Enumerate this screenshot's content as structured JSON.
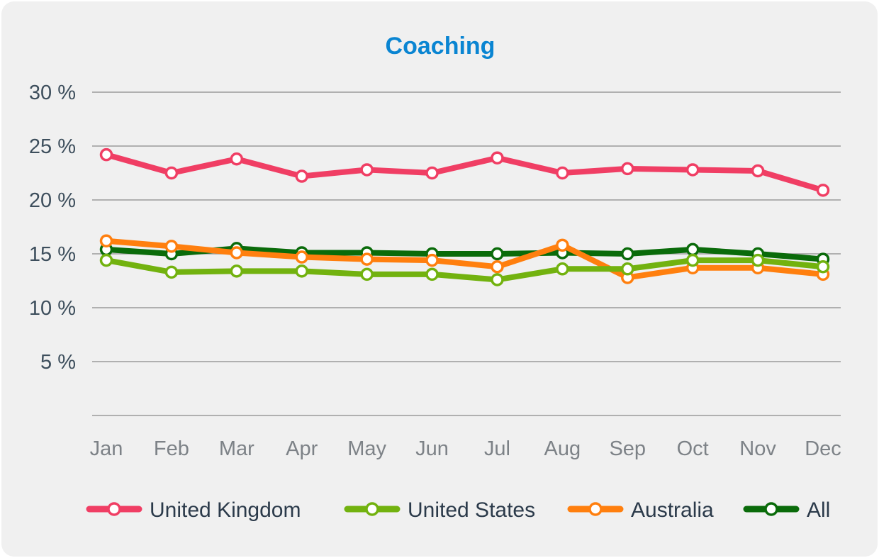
{
  "chart_data": {
    "type": "line",
    "title": "Coaching",
    "title_color": "#0a85d2",
    "xlabel": "",
    "ylabel": "",
    "ylim": [
      0,
      30
    ],
    "grid": true,
    "legend_position": "bottom",
    "x": [
      "Jan",
      "Feb",
      "Mar",
      "Apr",
      "May",
      "Jun",
      "Jul",
      "Aug",
      "Sep",
      "Oct",
      "Nov",
      "Dec"
    ],
    "y_ticks": [
      {
        "value": 5,
        "label": "5 %"
      },
      {
        "value": 10,
        "label": "10 %"
      },
      {
        "value": 15,
        "label": "15 %"
      },
      {
        "value": 20,
        "label": "20 %"
      },
      {
        "value": 25,
        "label": "25 %"
      },
      {
        "value": 30,
        "label": "30 %"
      }
    ],
    "series": [
      {
        "name": "United Kingdom",
        "color": "#f03e64",
        "values": [
          24.2,
          22.5,
          23.8,
          22.2,
          22.8,
          22.5,
          23.9,
          22.5,
          22.9,
          22.8,
          22.7,
          20.9
        ]
      },
      {
        "name": "United States",
        "color": "#72b20f",
        "values": [
          14.4,
          13.3,
          13.4,
          13.4,
          13.1,
          13.1,
          12.6,
          13.6,
          13.6,
          14.4,
          14.4,
          13.8
        ]
      },
      {
        "name": "Australia",
        "color": "#ff7f0e",
        "values": [
          16.2,
          15.7,
          15.1,
          14.7,
          14.5,
          14.4,
          13.8,
          15.8,
          12.8,
          13.7,
          13.7,
          13.1
        ]
      },
      {
        "name": "All",
        "color": "#0a6b0a",
        "values": [
          15.4,
          15.0,
          15.5,
          15.1,
          15.1,
          15.0,
          15.0,
          15.1,
          15.0,
          15.4,
          15.0,
          14.5
        ]
      }
    ]
  }
}
